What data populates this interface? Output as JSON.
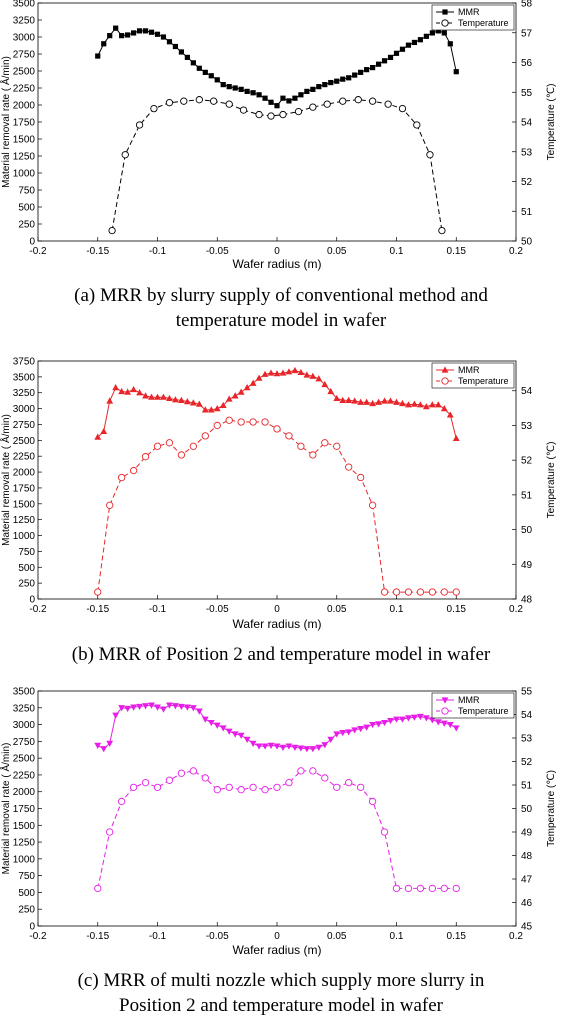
{
  "chart_data": [
    {
      "type": "line",
      "caption_line1": "(a) MRR by slurry supply of conventional method and",
      "caption_line2": "temperature model in wafer",
      "xlabel": "Wafer radius (m)",
      "ylabel_left": "Material removal rate ( Å/min)",
      "ylabel_right": "Temperature (℃)",
      "xlim": [
        -0.2,
        0.2
      ],
      "xticks": [
        "-0.2",
        "-0.15",
        "-0.1",
        "-0.05",
        "0",
        "0.05",
        "0.1",
        "0.15",
        "0.2"
      ],
      "ylim_left": [
        0,
        3500
      ],
      "yticks_left": [
        "0",
        "250",
        "500",
        "750",
        "1000",
        "1250",
        "1500",
        "1750",
        "2000",
        "2250",
        "2500",
        "2750",
        "3000",
        "3250",
        "3500"
      ],
      "ylim_right": [
        50,
        58
      ],
      "yticks_right": [
        "50",
        "51",
        "52",
        "53",
        "54",
        "55",
        "56",
        "57",
        "58"
      ],
      "legend_position": "top-right",
      "color": "#000000",
      "series": [
        {
          "name": "MMR",
          "axis": "left",
          "marker": "square",
          "style": "solid",
          "x": [
            -0.15,
            -0.145,
            -0.14,
            -0.135,
            -0.13,
            -0.125,
            -0.12,
            -0.115,
            -0.11,
            -0.105,
            -0.1,
            -0.095,
            -0.09,
            -0.085,
            -0.08,
            -0.075,
            -0.07,
            -0.065,
            -0.06,
            -0.055,
            -0.05,
            -0.045,
            -0.04,
            -0.035,
            -0.03,
            -0.025,
            -0.02,
            -0.015,
            -0.01,
            -0.005,
            0,
            0.005,
            0.01,
            0.015,
            0.02,
            0.025,
            0.03,
            0.035,
            0.04,
            0.045,
            0.05,
            0.055,
            0.06,
            0.065,
            0.07,
            0.075,
            0.08,
            0.085,
            0.09,
            0.095,
            0.1,
            0.105,
            0.11,
            0.115,
            0.12,
            0.125,
            0.13,
            0.135,
            0.14,
            0.145,
            0.15
          ],
          "y": [
            2720,
            2900,
            3020,
            3130,
            3020,
            3030,
            3060,
            3090,
            3090,
            3070,
            3040,
            3000,
            2930,
            2860,
            2780,
            2700,
            2620,
            2540,
            2480,
            2430,
            2370,
            2300,
            2270,
            2250,
            2230,
            2200,
            2180,
            2150,
            2100,
            2040,
            1990,
            2100,
            2060,
            2100,
            2150,
            2200,
            2230,
            2270,
            2300,
            2330,
            2350,
            2380,
            2400,
            2440,
            2480,
            2520,
            2550,
            2600,
            2650,
            2700,
            2760,
            2820,
            2880,
            2920,
            2960,
            3010,
            3060,
            3090,
            3060,
            2900,
            2490
          ]
        },
        {
          "name": "Temperature",
          "axis": "right",
          "marker": "circle",
          "style": "dashed",
          "x": [
            -0.138,
            -0.127,
            -0.115,
            -0.103,
            -0.09,
            -0.078,
            -0.065,
            -0.053,
            -0.04,
            -0.028,
            -0.015,
            -0.005,
            0.005,
            0.018,
            0.03,
            0.042,
            0.055,
            0.068,
            0.08,
            0.093,
            0.105,
            0.117,
            0.128,
            0.138
          ],
          "y": [
            50.35,
            52.9,
            53.9,
            54.45,
            54.65,
            54.7,
            54.75,
            54.7,
            54.6,
            54.4,
            54.25,
            54.2,
            54.25,
            54.35,
            54.5,
            54.6,
            54.7,
            54.75,
            54.7,
            54.6,
            54.45,
            53.9,
            52.9,
            50.35
          ]
        }
      ]
    },
    {
      "type": "line",
      "caption_line1": "(b) MRR of Position 2 and temperature model in wafer",
      "caption_line2": "",
      "xlabel": "Wafer radius (m)",
      "ylabel_left": "Material removal rate ( Å/min)",
      "ylabel_right": "Temperature (℃)",
      "xlim": [
        -0.2,
        0.2
      ],
      "xticks": [
        "-0.2",
        "-0.15",
        "-0.1",
        "-0.05",
        "0",
        "0.05",
        "0.1",
        "0.15",
        "0.2"
      ],
      "ylim_left": [
        0,
        3750
      ],
      "yticks_left": [
        "0",
        "250",
        "500",
        "750",
        "1000",
        "1250",
        "1500",
        "1750",
        "2000",
        "2250",
        "2500",
        "2750",
        "3000",
        "3250",
        "3500",
        "3750"
      ],
      "ylim_right": [
        48,
        54.857
      ],
      "yticks_right": [
        "48",
        "49",
        "50",
        "51",
        "52",
        "53",
        "54"
      ],
      "legend_position": "top-right",
      "color": "#e8262a",
      "series": [
        {
          "name": "MMR",
          "axis": "left",
          "marker": "triangle-up",
          "style": "solid",
          "x": [
            -0.15,
            -0.145,
            -0.14,
            -0.135,
            -0.13,
            -0.125,
            -0.12,
            -0.115,
            -0.11,
            -0.105,
            -0.1,
            -0.095,
            -0.09,
            -0.085,
            -0.08,
            -0.075,
            -0.07,
            -0.065,
            -0.06,
            -0.055,
            -0.05,
            -0.045,
            -0.04,
            -0.035,
            -0.03,
            -0.025,
            -0.02,
            -0.015,
            -0.01,
            -0.005,
            0,
            0.005,
            0.01,
            0.015,
            0.02,
            0.025,
            0.03,
            0.035,
            0.04,
            0.045,
            0.05,
            0.055,
            0.06,
            0.065,
            0.07,
            0.075,
            0.08,
            0.085,
            0.09,
            0.095,
            0.1,
            0.105,
            0.11,
            0.115,
            0.12,
            0.125,
            0.13,
            0.135,
            0.14,
            0.145,
            0.15
          ],
          "y": [
            2550,
            2640,
            3120,
            3330,
            3270,
            3260,
            3300,
            3250,
            3200,
            3180,
            3180,
            3180,
            3160,
            3140,
            3130,
            3110,
            3090,
            3070,
            2980,
            2980,
            3000,
            3050,
            3150,
            3200,
            3260,
            3330,
            3400,
            3480,
            3540,
            3560,
            3550,
            3560,
            3580,
            3600,
            3570,
            3530,
            3510,
            3470,
            3380,
            3270,
            3160,
            3130,
            3130,
            3120,
            3100,
            3100,
            3080,
            3100,
            3120,
            3120,
            3100,
            3080,
            3060,
            3070,
            3060,
            3030,
            3060,
            3060,
            3000,
            2900,
            2530
          ]
        },
        {
          "name": "Temperature",
          "axis": "right",
          "marker": "circle",
          "style": "dashed",
          "x": [
            -0.15,
            -0.14,
            -0.13,
            -0.12,
            -0.11,
            -0.1,
            -0.09,
            -0.08,
            -0.07,
            -0.06,
            -0.05,
            -0.04,
            -0.03,
            -0.02,
            -0.01,
            0,
            0.01,
            0.02,
            0.03,
            0.04,
            0.05,
            0.06,
            0.07,
            0.08,
            0.09,
            0.1,
            0.11,
            0.12,
            0.13,
            0.14,
            0.15
          ],
          "y": [
            48.2,
            50.7,
            51.5,
            51.7,
            52.1,
            52.4,
            52.5,
            52.15,
            52.4,
            52.7,
            53.0,
            53.15,
            53.1,
            53.1,
            53.1,
            52.9,
            52.7,
            52.4,
            52.15,
            52.5,
            52.4,
            51.8,
            51.5,
            50.7,
            48.2,
            48.2,
            48.2,
            48.2,
            48.2,
            48.2,
            48.2
          ]
        }
      ]
    },
    {
      "type": "line",
      "caption_line1": "(c) MRR of multi nozzle which supply more slurry in",
      "caption_line2": "Position 2 and temperature model in wafer",
      "xlabel": "Wafer radius (m)",
      "ylabel_left": "Material removal rate ( Å/min)",
      "ylabel_right": "Temperature (℃)",
      "xlim": [
        -0.2,
        0.2
      ],
      "xticks": [
        "-0.2",
        "-0.15",
        "-0.1",
        "-0.05",
        "0",
        "0.05",
        "0.1",
        "0.15",
        "0.2"
      ],
      "ylim_left": [
        0,
        3500
      ],
      "yticks_left": [
        "0",
        "250",
        "500",
        "750",
        "1000",
        "1250",
        "1500",
        "1750",
        "2000",
        "2250",
        "2500",
        "2750",
        "3000",
        "3250",
        "3500"
      ],
      "ylim_right": [
        45,
        55
      ],
      "yticks_right": [
        "45",
        "46",
        "47",
        "48",
        "49",
        "50",
        "51",
        "52",
        "53",
        "54",
        "55"
      ],
      "legend_position": "top-right",
      "color": "#e61ee6",
      "series": [
        {
          "name": "MMR",
          "axis": "left",
          "marker": "triangle-down",
          "style": "solid",
          "x": [
            -0.15,
            -0.145,
            -0.14,
            -0.135,
            -0.13,
            -0.125,
            -0.12,
            -0.115,
            -0.11,
            -0.105,
            -0.1,
            -0.095,
            -0.09,
            -0.085,
            -0.08,
            -0.075,
            -0.07,
            -0.065,
            -0.06,
            -0.055,
            -0.05,
            -0.045,
            -0.04,
            -0.035,
            -0.03,
            -0.025,
            -0.02,
            -0.015,
            -0.01,
            -0.005,
            0,
            0.005,
            0.01,
            0.015,
            0.02,
            0.025,
            0.03,
            0.035,
            0.04,
            0.045,
            0.05,
            0.055,
            0.06,
            0.065,
            0.07,
            0.075,
            0.08,
            0.085,
            0.09,
            0.095,
            0.1,
            0.105,
            0.11,
            0.115,
            0.12,
            0.125,
            0.13,
            0.135,
            0.14,
            0.145,
            0.15
          ],
          "y": [
            2690,
            2640,
            2720,
            3140,
            3250,
            3240,
            3260,
            3270,
            3280,
            3290,
            3260,
            3230,
            3290,
            3280,
            3270,
            3260,
            3250,
            3200,
            3080,
            3030,
            2990,
            2950,
            2900,
            2860,
            2840,
            2780,
            2720,
            2680,
            2680,
            2690,
            2680,
            2660,
            2680,
            2660,
            2650,
            2640,
            2640,
            2660,
            2700,
            2780,
            2860,
            2880,
            2890,
            2920,
            2940,
            2960,
            3000,
            3010,
            3030,
            3060,
            3080,
            3080,
            3100,
            3110,
            3120,
            3100,
            3070,
            3040,
            3020,
            3000,
            2950
          ]
        },
        {
          "name": "Temperature",
          "axis": "right",
          "marker": "circle",
          "style": "dashed",
          "x": [
            -0.15,
            -0.14,
            -0.13,
            -0.12,
            -0.11,
            -0.1,
            -0.09,
            -0.08,
            -0.07,
            -0.06,
            -0.05,
            -0.04,
            -0.03,
            -0.02,
            -0.01,
            0,
            0.01,
            0.02,
            0.03,
            0.04,
            0.05,
            0.06,
            0.07,
            0.08,
            0.09,
            0.1,
            0.11,
            0.12,
            0.13,
            0.14,
            0.15
          ],
          "y": [
            46.6,
            49.0,
            50.3,
            50.9,
            51.1,
            50.9,
            51.2,
            51.5,
            51.6,
            51.3,
            50.8,
            50.9,
            50.8,
            50.9,
            50.8,
            50.9,
            51.1,
            51.6,
            51.6,
            51.3,
            50.9,
            51.1,
            50.9,
            50.3,
            49.0,
            46.6,
            46.6,
            46.6,
            46.6,
            46.6,
            46.6
          ]
        }
      ]
    }
  ]
}
